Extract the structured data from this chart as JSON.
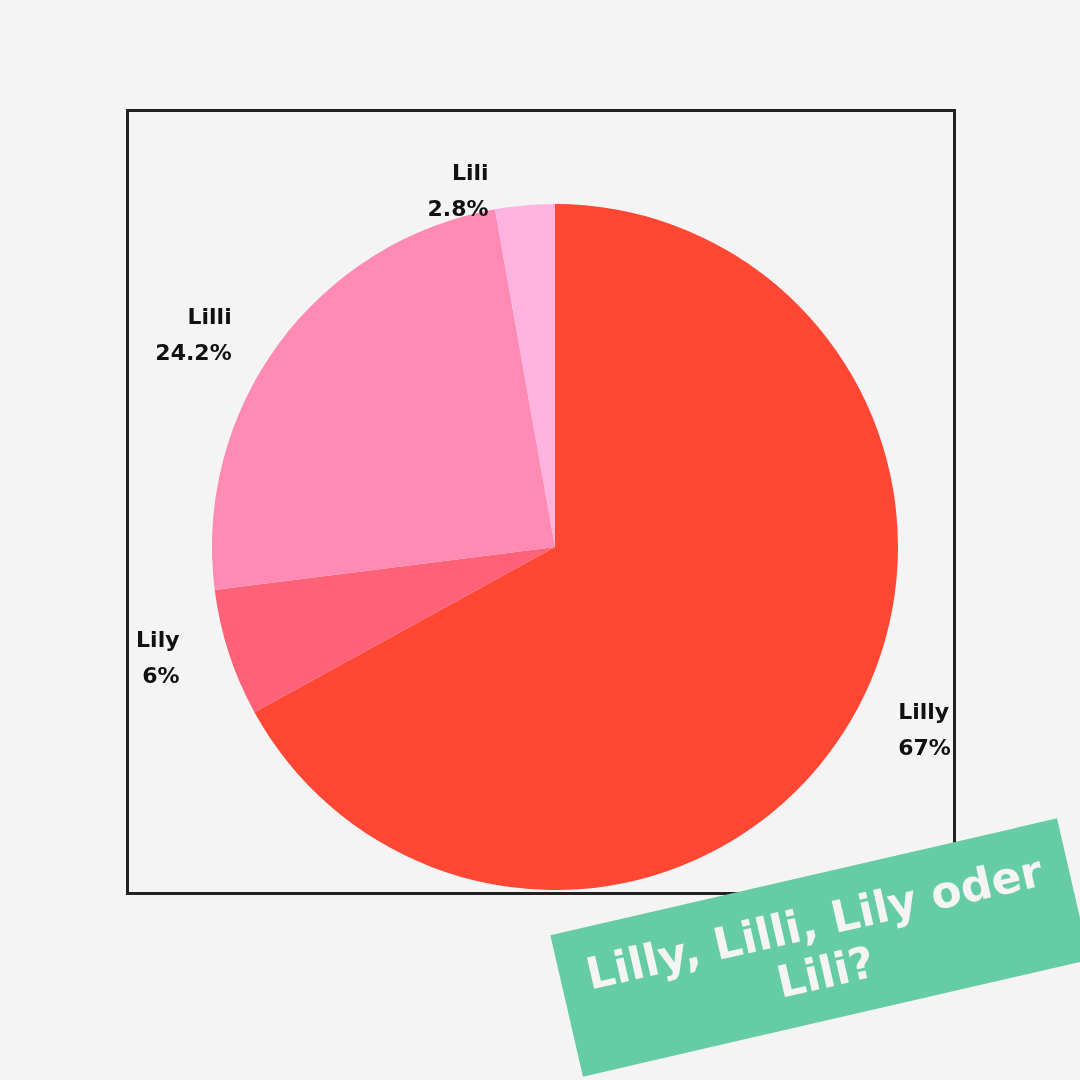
{
  "chart_data": {
    "type": "pie",
    "title": "Lilly, Lilli, Lily oder Lili?",
    "categories": [
      "Lilly",
      "Lily",
      "Lilli",
      "Lili"
    ],
    "values": [
      67,
      6,
      24.2,
      2.8
    ],
    "value_labels": [
      "67%",
      "6%",
      "24.2%",
      "2.8%"
    ],
    "colors": [
      "#ff4733",
      "#ff6178",
      "#ff8ab3",
      "#ffb3e0"
    ],
    "legend": false
  }
}
